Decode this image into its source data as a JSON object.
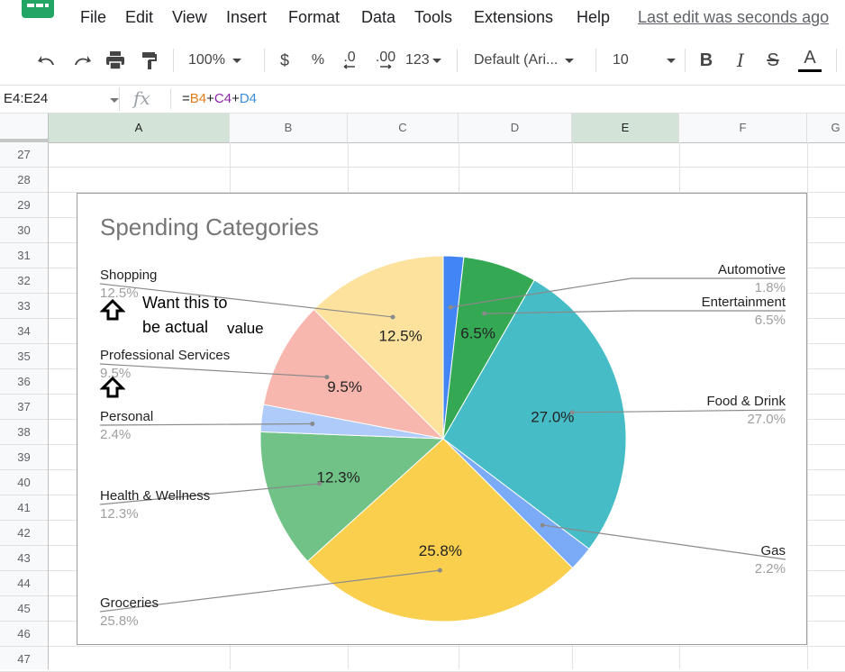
{
  "menu": {
    "items": [
      "File",
      "Edit",
      "View",
      "Insert",
      "Format",
      "Data",
      "Tools",
      "Extensions",
      "Help"
    ],
    "last_edit": "Last edit was seconds ago"
  },
  "toolbar": {
    "zoom": "100%",
    "currency": "$",
    "percent": "%",
    "decrease_decimal": ".0",
    "increase_decimal": ".00",
    "more_formats": "123",
    "font": "Default (Ari...",
    "font_size": "10",
    "bold": "B",
    "italic": "I",
    "strikethrough": "S",
    "text_color": "A",
    "icons": [
      "undo-icon",
      "redo-icon",
      "print-icon",
      "paint-format-icon"
    ]
  },
  "formula_bar": {
    "name_box": "E4:E24",
    "fx": "fx",
    "formula_parts": [
      {
        "text": "=",
        "color": "#202124"
      },
      {
        "text": "B4",
        "color": "#e37d1a"
      },
      {
        "text": "+",
        "color": "#202124"
      },
      {
        "text": "C4",
        "color": "#8e24aa"
      },
      {
        "text": "+",
        "color": "#202124"
      },
      {
        "text": "D4",
        "color": "#3c8fd6"
      }
    ]
  },
  "grid": {
    "columns": [
      "A",
      "B",
      "C",
      "D",
      "E",
      "F",
      "G"
    ],
    "selected_columns": [
      "A",
      "E"
    ],
    "rows": [
      "27",
      "28",
      "29",
      "30",
      "31",
      "32",
      "33",
      "34",
      "35",
      "36",
      "37",
      "38",
      "39",
      "40",
      "41",
      "42",
      "43",
      "44",
      "45",
      "46",
      "47"
    ]
  },
  "chart_data": {
    "type": "pie",
    "title": "Spending Categories",
    "categories": [
      "Automotive",
      "Entertainment",
      "Food & Drink",
      "Gas",
      "Groceries",
      "Health & Wellness",
      "Personal",
      "Professional Services",
      "Shopping"
    ],
    "values": [
      1.8,
      6.5,
      27.0,
      2.2,
      25.8,
      12.3,
      2.4,
      9.5,
      12.5
    ],
    "labels": [
      "1.8%",
      "6.5%",
      "27.0%",
      "2.2%",
      "25.8%",
      "12.3%",
      "2.4%",
      "9.5%",
      "12.5%"
    ],
    "inside_labels": [
      "",
      "6.5%",
      "27.0%",
      "",
      "25.8%",
      "12.3%",
      "",
      "9.5%",
      "12.5%"
    ],
    "colors": [
      "#4285f4",
      "#34a853",
      "#46bdc6",
      "#7baaf7",
      "#fbcf4e",
      "#71c287",
      "#aecbfa",
      "#f7b6ae",
      "#fde29e"
    ],
    "legend": "labeled"
  },
  "annotation": {
    "line1": "Want this to",
    "line2a": "be actual",
    "line2b": "value"
  }
}
